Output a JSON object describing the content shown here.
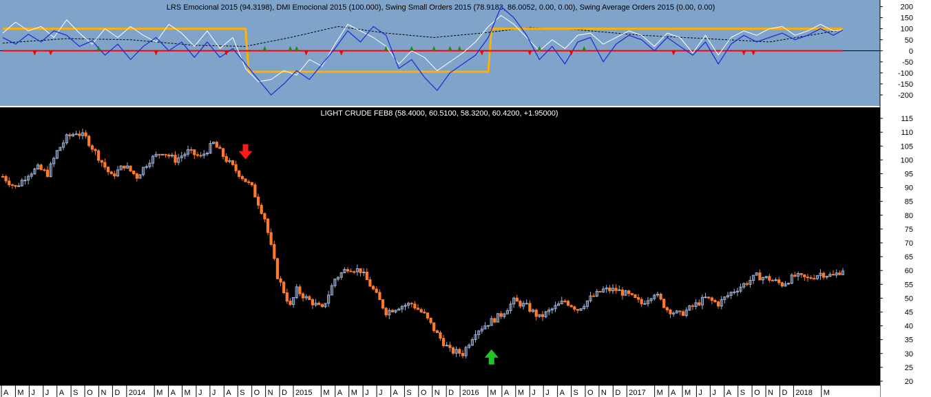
{
  "colors": {
    "top_panel_bg": "#7fa3c9",
    "main_bg": "#000000",
    "axis_bg": "#ffffff",
    "candle_up": "#9fb4d8",
    "candle_down": "#ff7a2a",
    "lrs_line": "#ffffff",
    "dmi_line": "#1f2fd6",
    "swing_small_line": "#ffb000",
    "swing_avg_line": "#ff0000",
    "zero_line": "#000000",
    "dashed_line": "#000000",
    "sell_arrow": "#ff1a1a",
    "buy_arrow": "#22c22a",
    "sell_marker": "#ff0000",
    "buy_marker": "#1e8a1e"
  },
  "chart_data": [
    {
      "type": "line",
      "title": "LRS Emocional 2015 (94.3198), DMI Emocional 2015 (100.000), Swing Small Orders 2015 (78.9183, 86.0052, 0.00, 0.00), Swing Average Orders 2015 (0.00, 0.00)",
      "ylim": [
        -250,
        230
      ],
      "y_ticks": [
        "200",
        "150",
        "100",
        "50",
        "0",
        "-50",
        "-100",
        "-150",
        "-200"
      ],
      "y_tick_values": [
        200,
        150,
        100,
        50,
        0,
        -50,
        -100,
        -150,
        -200
      ],
      "x_range_weeks": [
        0,
        263
      ],
      "series": [
        {
          "key": "swing_small",
          "x": [
            0,
            76,
            77,
            152,
            153,
            263
          ],
          "values": [
            100,
            100,
            -95,
            -95,
            100,
            100
          ]
        },
        {
          "key": "swing_average",
          "x": [
            0,
            263
          ],
          "values": [
            0,
            0
          ]
        },
        {
          "key": "dashed_band",
          "x": [
            0,
            20,
            40,
            60,
            76,
            90,
            105,
            120,
            135,
            150,
            165,
            180,
            200,
            220,
            240,
            263
          ],
          "values": [
            35,
            55,
            50,
            25,
            20,
            60,
            110,
            80,
            60,
            80,
            105,
            95,
            70,
            55,
            40,
            95
          ]
        },
        {
          "key": "dmi",
          "x": [
            0,
            4,
            8,
            12,
            16,
            20,
            24,
            28,
            32,
            36,
            40,
            44,
            48,
            52,
            56,
            60,
            64,
            68,
            72,
            76,
            80,
            84,
            88,
            92,
            96,
            100,
            104,
            108,
            112,
            116,
            120,
            124,
            128,
            132,
            136,
            140,
            144,
            148,
            152,
            156,
            160,
            164,
            168,
            172,
            176,
            180,
            184,
            188,
            192,
            196,
            200,
            204,
            208,
            212,
            216,
            220,
            224,
            228,
            232,
            236,
            240,
            244,
            248,
            252,
            256,
            260,
            263
          ],
          "values": [
            60,
            30,
            75,
            40,
            90,
            70,
            20,
            45,
            -20,
            30,
            -40,
            20,
            60,
            0,
            40,
            -30,
            40,
            -30,
            10,
            -60,
            -130,
            -200,
            -150,
            -90,
            -130,
            -60,
            10,
            90,
            40,
            110,
            70,
            -80,
            -40,
            -120,
            -180,
            -100,
            -60,
            -20,
            60,
            200,
            150,
            70,
            -40,
            20,
            -60,
            40,
            60,
            -50,
            30,
            70,
            50,
            0,
            60,
            20,
            -20,
            40,
            -60,
            30,
            70,
            40,
            60,
            80,
            50,
            70,
            100,
            70,
            94
          ]
        },
        {
          "key": "lrs",
          "x": [
            0,
            4,
            8,
            12,
            16,
            20,
            24,
            28,
            32,
            36,
            40,
            44,
            48,
            52,
            56,
            60,
            64,
            68,
            72,
            76,
            80,
            84,
            88,
            92,
            96,
            100,
            104,
            108,
            112,
            116,
            120,
            124,
            128,
            132,
            136,
            140,
            144,
            148,
            152,
            156,
            160,
            164,
            168,
            172,
            176,
            180,
            184,
            188,
            192,
            196,
            200,
            204,
            208,
            212,
            216,
            220,
            224,
            228,
            232,
            236,
            240,
            244,
            248,
            252,
            256,
            260,
            263
          ],
          "values": [
            80,
            130,
            90,
            110,
            60,
            140,
            80,
            30,
            100,
            60,
            110,
            70,
            40,
            120,
            80,
            20,
            90,
            10,
            60,
            -80,
            -140,
            -130,
            -90,
            -110,
            -40,
            -70,
            30,
            120,
            90,
            60,
            20,
            -60,
            0,
            -30,
            -90,
            -50,
            -10,
            40,
            110,
            160,
            120,
            60,
            0,
            50,
            10,
            70,
            80,
            30,
            60,
            90,
            70,
            20,
            80,
            60,
            -10,
            70,
            -20,
            60,
            90,
            70,
            100,
            110,
            70,
            90,
            120,
            90,
            94
          ]
        }
      ],
      "signals": {
        "sell_x": [
          10,
          15,
          48,
          70,
          95,
          106,
          150,
          165,
          178,
          210,
          232,
          235
        ],
        "buy_x": [
          30,
          82,
          90,
          92,
          120,
          128,
          135,
          140,
          143,
          168,
          182
        ]
      }
    },
    {
      "type": "candlestick",
      "title": "LIGHT CRUDE FEB8 (58.4000, 60.5100, 58.3200, 60.4200, +1.95000)",
      "ylim": [
        18.5,
        119
      ],
      "y_ticks": [
        "115",
        "110",
        "105",
        "100",
        "95",
        "90",
        "85",
        "80",
        "75",
        "70",
        "65",
        "60",
        "55",
        "50",
        "45",
        "40",
        "35",
        "30",
        "25",
        "20"
      ],
      "y_tick_values": [
        115,
        110,
        105,
        100,
        95,
        90,
        85,
        80,
        75,
        70,
        65,
        60,
        55,
        50,
        45,
        40,
        35,
        30,
        25,
        20
      ],
      "x_range_weeks": [
        0,
        263
      ],
      "x_ticks": [
        "A",
        "M",
        "J",
        "J",
        "A",
        "S",
        "O",
        "N",
        "D",
        "2014",
        "M",
        "A",
        "M",
        "J",
        "J",
        "A",
        "S",
        "O",
        "N",
        "D",
        "2015",
        "M",
        "A",
        "M",
        "J",
        "J",
        "A",
        "S",
        "O",
        "N",
        "D",
        "2016",
        "M",
        "A",
        "M",
        "J",
        "J",
        "A",
        "S",
        "O",
        "N",
        "D",
        "2017",
        "M",
        "A",
        "M",
        "J",
        "J",
        "A",
        "S",
        "O",
        "N",
        "D",
        "2018",
        "M"
      ],
      "x_tick_weeks": [
        0,
        4.4,
        8.7,
        13.1,
        17.4,
        21.8,
        26.1,
        30.5,
        34.8,
        39.2,
        47.9,
        52.3,
        56.6,
        61,
        65.3,
        69.7,
        74,
        78.4,
        82.7,
        87.1,
        91.4,
        100.1,
        104.5,
        108.8,
        113.2,
        117.5,
        121.9,
        126.2,
        130.6,
        134.9,
        139.3,
        143.6,
        152.3,
        156.7,
        161,
        165.4,
        169.7,
        174.1,
        178.4,
        182.8,
        187.1,
        191.5,
        195.8,
        204.5,
        208.9,
        213.2,
        217.6,
        221.9,
        226.3,
        230.6,
        235,
        239.3,
        243.7,
        248,
        256.7
      ],
      "close_anchors": {
        "x": [
          0,
          4,
          8,
          11,
          14,
          17,
          20,
          23,
          26,
          30,
          34,
          38,
          42,
          46,
          50,
          54,
          58,
          62,
          66,
          70,
          74,
          78,
          82,
          86,
          90,
          92,
          95,
          100,
          104,
          108,
          112,
          116,
          120,
          124,
          128,
          132,
          136,
          140,
          144,
          148,
          152,
          156,
          160,
          164,
          168,
          172,
          176,
          180,
          184,
          188,
          192,
          196,
          200,
          204,
          208,
          212,
          216,
          220,
          224,
          228,
          232,
          236,
          240,
          244,
          248,
          252,
          256,
          260,
          263
        ],
        "values": [
          94,
          90,
          95,
          97,
          95,
          103,
          108,
          110,
          108,
          101,
          94,
          98,
          94,
          100,
          103,
          100,
          103,
          101,
          106,
          100,
          95,
          90,
          79,
          58,
          47,
          53,
          50,
          46,
          57,
          61,
          60,
          53,
          45,
          47,
          48,
          44,
          37,
          31,
          30,
          38,
          41,
          44,
          49,
          47,
          43,
          46,
          49,
          46,
          50,
          53,
          53,
          51,
          48,
          52,
          46,
          44,
          47,
          50,
          48,
          52,
          55,
          58,
          57,
          55,
          58,
          57,
          59,
          58,
          60.42
        ]
      },
      "arrows": [
        {
          "kind": "sell",
          "x": 76,
          "price": 99.2
        },
        {
          "kind": "buy",
          "x": 153,
          "price": 33.0
        }
      ]
    }
  ]
}
